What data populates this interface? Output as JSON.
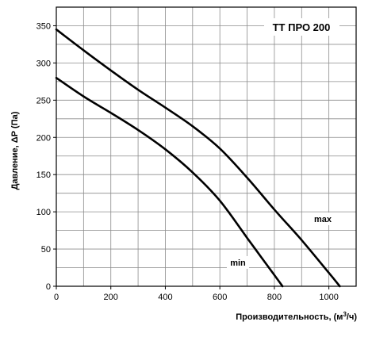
{
  "chart_data": {
    "type": "line",
    "title": "ТТ ПРО 200",
    "xlabel": "Производительность, (м",
    "xlabel_sup": "3",
    "xlabel_end": "/ч)",
    "ylabel": "Давление, ΔР (Па)",
    "xlim": [
      0,
      1100
    ],
    "ylim": [
      0,
      375
    ],
    "x_ticks": [
      0,
      200,
      400,
      600,
      800,
      1000
    ],
    "y_ticks": [
      0,
      50,
      100,
      150,
      200,
      250,
      300,
      350
    ],
    "x_grid_step": 100,
    "y_grid_step": 25,
    "grid": true,
    "series": [
      {
        "name": "max",
        "x": [
          0,
          100,
          200,
          300,
          400,
          500,
          600,
          700,
          800,
          900,
          1000,
          1040
        ],
        "y": [
          345,
          317,
          290,
          264,
          240,
          215,
          185,
          146,
          103,
          62,
          18,
          0
        ]
      },
      {
        "name": "min",
        "x": [
          0,
          100,
          200,
          300,
          400,
          500,
          600,
          700,
          750,
          800,
          830
        ],
        "y": [
          280,
          255,
          233,
          210,
          184,
          153,
          115,
          65,
          40,
          15,
          0
        ]
      }
    ]
  }
}
